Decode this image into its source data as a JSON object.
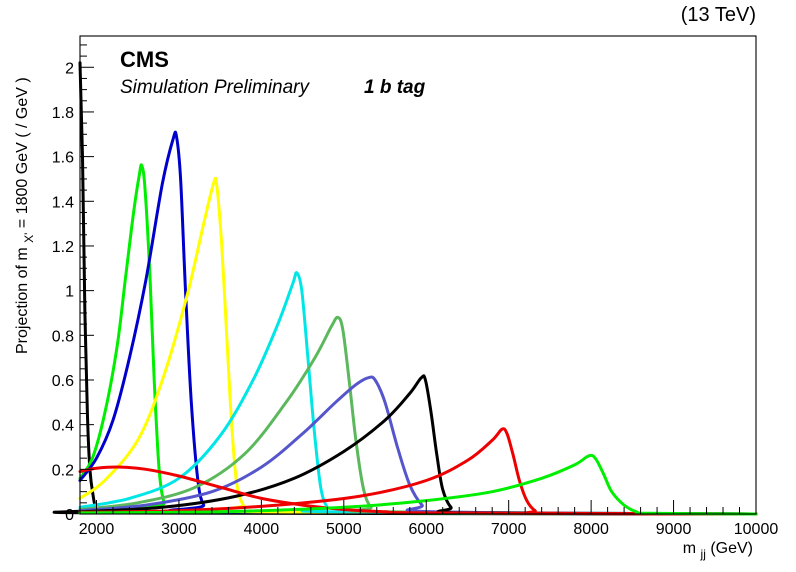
{
  "chart_data": {
    "type": "line",
    "title": "",
    "energy_label": "(13 TeV)",
    "experiment_label": "CMS",
    "status_label": "Simulation Preliminary",
    "category_label": "1 b tag",
    "xlabel": {
      "main": "m",
      "sub": "jj",
      "unit": " (GeV)"
    },
    "ylabel": {
      "pre": "Projection of m",
      "sub": "X'",
      "post": " = 1800 GeV ( / GeV )"
    },
    "xlim": [
      1800,
      10000
    ],
    "ylim": [
      0,
      2.14
    ],
    "x_ticks": [
      2000,
      3000,
      4000,
      5000,
      6000,
      7000,
      8000,
      9000,
      10000
    ],
    "x_tick_labels": [
      "2000",
      "3000",
      "4000",
      "5000",
      "6000",
      "7000",
      "8000",
      "9000",
      "10000"
    ],
    "y_ticks": [
      0,
      0.2,
      0.4,
      0.6,
      0.8,
      1,
      1.2,
      1.4,
      1.6,
      1.8,
      2
    ],
    "y_tick_labels": [
      "0",
      "0.2",
      "0.4",
      "0.6",
      "0.8",
      "1",
      "1.2",
      "1.4",
      "1.6",
      "1.8",
      "2"
    ],
    "grid": false,
    "series": [
      {
        "color": "#000000",
        "points": [
          [
            1800,
            2.02
          ],
          [
            1830,
            1.6
          ],
          [
            1860,
            0.9
          ],
          [
            1890,
            0.45
          ],
          [
            1920,
            0.2
          ],
          [
            1960,
            0.08
          ],
          [
            2000,
            0.02
          ],
          [
            2100,
            0.005
          ],
          [
            10000,
            0
          ]
        ]
      },
      {
        "color": "#00ee00",
        "points": [
          [
            1800,
            0.16
          ],
          [
            1950,
            0.25
          ],
          [
            2100,
            0.45
          ],
          [
            2250,
            0.75
          ],
          [
            2350,
            1.05
          ],
          [
            2450,
            1.35
          ],
          [
            2520,
            1.52
          ],
          [
            2550,
            1.56
          ],
          [
            2590,
            1.45
          ],
          [
            2650,
            1.05
          ],
          [
            2700,
            0.6
          ],
          [
            2760,
            0.2
          ],
          [
            2820,
            0.05
          ],
          [
            2900,
            0.01
          ],
          [
            10000,
            0
          ]
        ]
      },
      {
        "color": "#0000cc",
        "points": [
          [
            1800,
            0.15
          ],
          [
            2000,
            0.25
          ],
          [
            2200,
            0.42
          ],
          [
            2400,
            0.7
          ],
          [
            2600,
            1.05
          ],
          [
            2800,
            1.48
          ],
          [
            2930,
            1.68
          ],
          [
            2970,
            1.69
          ],
          [
            3020,
            1.5
          ],
          [
            3080,
            1.0
          ],
          [
            3150,
            0.5
          ],
          [
            3230,
            0.15
          ],
          [
            3300,
            0.04
          ],
          [
            3400,
            0.01
          ],
          [
            10000,
            0
          ]
        ]
      },
      {
        "color": "#ffff00",
        "points": [
          [
            1800,
            0.07
          ],
          [
            2100,
            0.15
          ],
          [
            2500,
            0.33
          ],
          [
            2800,
            0.6
          ],
          [
            3100,
            0.98
          ],
          [
            3300,
            1.3
          ],
          [
            3420,
            1.48
          ],
          [
            3460,
            1.47
          ],
          [
            3520,
            1.2
          ],
          [
            3580,
            0.8
          ],
          [
            3640,
            0.4
          ],
          [
            3700,
            0.14
          ],
          [
            3780,
            0.04
          ],
          [
            3900,
            0.01
          ],
          [
            10000,
            0
          ]
        ]
      },
      {
        "color": "#00e6e6",
        "points": [
          [
            1800,
            0.03
          ],
          [
            2400,
            0.07
          ],
          [
            3000,
            0.16
          ],
          [
            3500,
            0.35
          ],
          [
            3900,
            0.6
          ],
          [
            4200,
            0.85
          ],
          [
            4380,
            1.03
          ],
          [
            4430,
            1.08
          ],
          [
            4490,
            1.0
          ],
          [
            4560,
            0.72
          ],
          [
            4640,
            0.38
          ],
          [
            4720,
            0.12
          ],
          [
            4800,
            0.03
          ],
          [
            4900,
            0.01
          ],
          [
            10000,
            0
          ]
        ]
      },
      {
        "color": "#5cb85c",
        "points": [
          [
            1800,
            0.02
          ],
          [
            2500,
            0.05
          ],
          [
            3200,
            0.12
          ],
          [
            3800,
            0.27
          ],
          [
            4300,
            0.5
          ],
          [
            4650,
            0.7
          ],
          [
            4850,
            0.84
          ],
          [
            4930,
            0.88
          ],
          [
            4990,
            0.82
          ],
          [
            5070,
            0.58
          ],
          [
            5150,
            0.32
          ],
          [
            5240,
            0.11
          ],
          [
            5330,
            0.03
          ],
          [
            5450,
            0.01
          ],
          [
            10000,
            0
          ]
        ]
      },
      {
        "color": "#5555cc",
        "points": [
          [
            1800,
            0.015
          ],
          [
            2600,
            0.04
          ],
          [
            3400,
            0.1
          ],
          [
            4000,
            0.21
          ],
          [
            4500,
            0.36
          ],
          [
            4900,
            0.5
          ],
          [
            5150,
            0.58
          ],
          [
            5300,
            0.61
          ],
          [
            5380,
            0.6
          ],
          [
            5500,
            0.5
          ],
          [
            5650,
            0.3
          ],
          [
            5800,
            0.13
          ],
          [
            5950,
            0.04
          ],
          [
            6100,
            0.01
          ],
          [
            10000,
            0
          ]
        ]
      },
      {
        "color": "#000000",
        "points": [
          [
            1800,
            0.01
          ],
          [
            2800,
            0.03
          ],
          [
            3700,
            0.08
          ],
          [
            4400,
            0.16
          ],
          [
            5000,
            0.28
          ],
          [
            5500,
            0.42
          ],
          [
            5800,
            0.54
          ],
          [
            5940,
            0.61
          ],
          [
            5990,
            0.6
          ],
          [
            6060,
            0.45
          ],
          [
            6130,
            0.26
          ],
          [
            6200,
            0.11
          ],
          [
            6300,
            0.03
          ],
          [
            6450,
            0.005
          ],
          [
            10000,
            0
          ]
        ]
      },
      {
        "color": "#ee0000",
        "points": [
          [
            1800,
            0.19
          ],
          [
            2000,
            0.205
          ],
          [
            2300,
            0.21
          ],
          [
            2600,
            0.2
          ],
          [
            3000,
            0.17
          ],
          [
            3500,
            0.12
          ],
          [
            4000,
            0.07
          ],
          [
            4500,
            0.04
          ],
          [
            5000,
            0.02
          ],
          [
            5500,
            0.01
          ],
          [
            6000,
            0.005
          ],
          [
            10000,
            0
          ]
        ]
      },
      {
        "color": "#ee0000",
        "points": [
          [
            1800,
            0.008
          ],
          [
            3000,
            0.015
          ],
          [
            4200,
            0.04
          ],
          [
            5200,
            0.08
          ],
          [
            6000,
            0.15
          ],
          [
            6500,
            0.24
          ],
          [
            6800,
            0.33
          ],
          [
            6920,
            0.38
          ],
          [
            6980,
            0.36
          ],
          [
            7050,
            0.27
          ],
          [
            7130,
            0.15
          ],
          [
            7220,
            0.06
          ],
          [
            7320,
            0.015
          ],
          [
            7450,
            0.003
          ],
          [
            10000,
            0
          ]
        ]
      },
      {
        "color": "#00ee00",
        "points": [
          [
            1800,
            0.005
          ],
          [
            3500,
            0.01
          ],
          [
            5000,
            0.03
          ],
          [
            6000,
            0.06
          ],
          [
            6800,
            0.1
          ],
          [
            7400,
            0.16
          ],
          [
            7800,
            0.22
          ],
          [
            7970,
            0.26
          ],
          [
            8050,
            0.25
          ],
          [
            8150,
            0.18
          ],
          [
            8250,
            0.1
          ],
          [
            8400,
            0.04
          ],
          [
            8550,
            0.01
          ],
          [
            8700,
            0.003
          ],
          [
            10000,
            0
          ]
        ]
      }
    ]
  }
}
